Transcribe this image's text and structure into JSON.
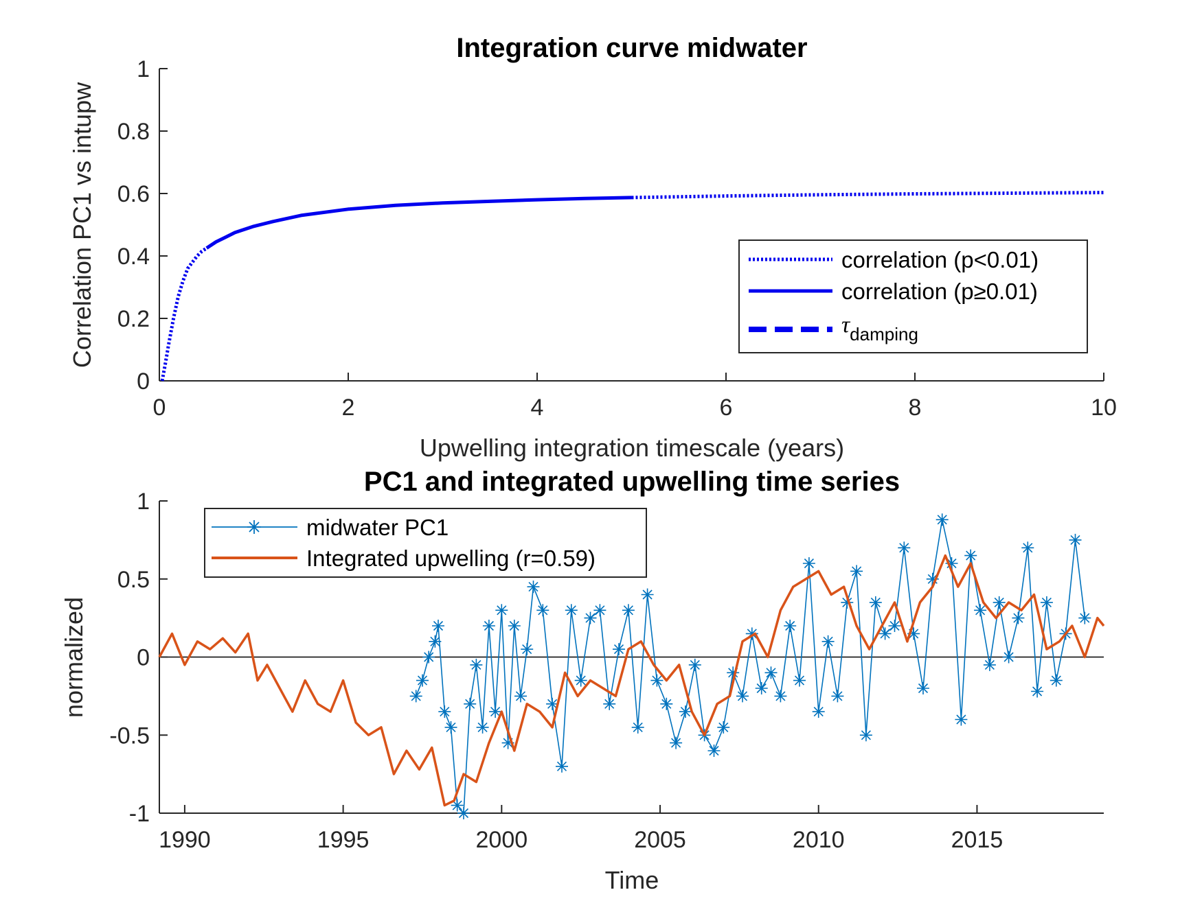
{
  "colors": {
    "top_series": "#0000ee",
    "pc1": "#0072bd",
    "upwelling": "#d95319",
    "axis": "#262626"
  },
  "chart_data": [
    {
      "type": "line",
      "title": "Integration curve midwater",
      "xlabel": "Upwelling integration timescale (years)",
      "ylabel": "Correlation PC1 vs intupw",
      "xlim": [
        0,
        10
      ],
      "ylim": [
        0,
        1
      ],
      "xticks": [
        0,
        2,
        4,
        6,
        8,
        10
      ],
      "xtick_labels": [
        "0",
        "2",
        "4",
        "6",
        "8",
        "10"
      ],
      "yticks": [
        0,
        0.2,
        0.4,
        0.6,
        0.8,
        1
      ],
      "ytick_labels": [
        "0",
        "0.2",
        "0.4",
        "0.6",
        "0.8",
        "1"
      ],
      "grid": false,
      "legend_position": "lower-right",
      "legend": [
        {
          "label": "correlation (p<0.01)",
          "style": "dotted"
        },
        {
          "label": "correlation (p≥0.01)",
          "style": "solid"
        },
        {
          "label_main": "τ",
          "label_sub": "damping",
          "style": "dashed"
        }
      ],
      "series": [
        {
          "style": "dotted",
          "x": [
            0.03,
            0.06,
            0.1,
            0.15,
            0.2,
            0.25,
            0.3,
            0.35,
            0.4,
            0.45,
            0.5
          ],
          "y": [
            0.0,
            0.05,
            0.12,
            0.2,
            0.27,
            0.32,
            0.36,
            0.38,
            0.4,
            0.415,
            0.425
          ]
        },
        {
          "style": "solid",
          "x": [
            0.5,
            0.6,
            0.7,
            0.8,
            1.0,
            1.2,
            1.5,
            2.0,
            2.5,
            3.0,
            3.5,
            4.0,
            4.5,
            5.0
          ],
          "y": [
            0.425,
            0.445,
            0.46,
            0.475,
            0.495,
            0.51,
            0.53,
            0.55,
            0.562,
            0.57,
            0.575,
            0.58,
            0.584,
            0.587
          ]
        },
        {
          "style": "dotted",
          "x": [
            5.0,
            6.0,
            7.0,
            8.0,
            9.0,
            10.0
          ],
          "y": [
            0.587,
            0.592,
            0.596,
            0.599,
            0.601,
            0.603
          ]
        }
      ]
    },
    {
      "type": "line",
      "title": "PC1 and integrated upwelling time series",
      "xlabel": "Time",
      "ylabel": "normalized",
      "xlim": [
        1989.2,
        2019
      ],
      "ylim": [
        -1,
        1
      ],
      "xticks": [
        1990,
        1995,
        2000,
        2005,
        2010,
        2015
      ],
      "xtick_labels": [
        "1990",
        "1995",
        "2000",
        "2005",
        "2010",
        "2015"
      ],
      "yticks": [
        -1,
        -0.5,
        0,
        0.5,
        1
      ],
      "ytick_labels": [
        "-1",
        "-0.5",
        "0",
        "0.5",
        "1"
      ],
      "grid": false,
      "zero_line": true,
      "legend_position": "top-left",
      "series": [
        {
          "name": "midwater PC1",
          "marker": "asterisk",
          "x": [
            1997.3,
            1997.5,
            1997.7,
            1997.9,
            1998.0,
            1998.2,
            1998.4,
            1998.6,
            1998.8,
            1999.0,
            1999.2,
            1999.4,
            1999.6,
            1999.8,
            2000.0,
            2000.2,
            2000.4,
            2000.6,
            2000.8,
            2001.0,
            2001.3,
            2001.6,
            2001.9,
            2002.2,
            2002.5,
            2002.8,
            2003.1,
            2003.4,
            2003.7,
            2004.0,
            2004.3,
            2004.6,
            2004.9,
            2005.2,
            2005.5,
            2005.8,
            2006.1,
            2006.4,
            2006.7,
            2007.0,
            2007.3,
            2007.6,
            2007.9,
            2008.2,
            2008.5,
            2008.8,
            2009.1,
            2009.4,
            2009.7,
            2010.0,
            2010.3,
            2010.6,
            2010.9,
            2011.2,
            2011.5,
            2011.8,
            2012.1,
            2012.4,
            2012.7,
            2013.0,
            2013.3,
            2013.6,
            2013.9,
            2014.2,
            2014.5,
            2014.8,
            2015.1,
            2015.4,
            2015.7,
            2016.0,
            2016.3,
            2016.6,
            2016.9,
            2017.2,
            2017.5,
            2017.8,
            2018.1,
            2018.4
          ],
          "y": [
            -0.25,
            -0.15,
            0.0,
            0.1,
            0.2,
            -0.35,
            -0.45,
            -0.95,
            -1.0,
            -0.3,
            -0.05,
            -0.45,
            0.2,
            -0.35,
            0.3,
            -0.55,
            0.2,
            -0.25,
            0.05,
            0.45,
            0.3,
            -0.3,
            -0.7,
            0.3,
            -0.15,
            0.25,
            0.3,
            -0.3,
            0.05,
            0.3,
            -0.45,
            0.4,
            -0.15,
            -0.3,
            -0.55,
            -0.35,
            -0.05,
            -0.5,
            -0.6,
            -0.45,
            -0.1,
            -0.25,
            0.15,
            -0.2,
            -0.1,
            -0.25,
            0.2,
            -0.15,
            0.6,
            -0.35,
            0.1,
            -0.25,
            0.35,
            0.55,
            -0.5,
            0.35,
            0.15,
            0.2,
            0.7,
            0.15,
            -0.2,
            0.5,
            0.88,
            0.6,
            -0.4,
            0.65,
            0.3,
            -0.05,
            0.35,
            0.0,
            0.25,
            0.7,
            -0.22,
            0.35,
            -0.15,
            0.15,
            0.75,
            0.25
          ]
        },
        {
          "name": "Integrated upwelling (r=0.59)",
          "marker": "none",
          "x": [
            1989.2,
            1989.6,
            1990.0,
            1990.4,
            1990.8,
            1991.2,
            1991.6,
            1992.0,
            1992.3,
            1992.6,
            1993.0,
            1993.4,
            1993.8,
            1994.2,
            1994.6,
            1995.0,
            1995.4,
            1995.8,
            1996.2,
            1996.6,
            1997.0,
            1997.4,
            1997.8,
            1998.2,
            1998.5,
            1998.8,
            1999.2,
            1999.6,
            2000.0,
            2000.4,
            2000.8,
            2001.2,
            2001.6,
            2002.0,
            2002.4,
            2002.8,
            2003.2,
            2003.6,
            2004.0,
            2004.4,
            2004.8,
            2005.2,
            2005.6,
            2006.0,
            2006.4,
            2006.8,
            2007.2,
            2007.6,
            2008.0,
            2008.4,
            2008.8,
            2009.2,
            2009.6,
            2010.0,
            2010.4,
            2010.8,
            2011.2,
            2011.6,
            2012.0,
            2012.4,
            2012.8,
            2013.2,
            2013.6,
            2014.0,
            2014.4,
            2014.8,
            2015.2,
            2015.6,
            2016.0,
            2016.4,
            2016.8,
            2017.2,
            2017.6,
            2018.0,
            2018.4,
            2018.8,
            2019.0
          ],
          "y": [
            0.0,
            0.15,
            -0.05,
            0.1,
            0.05,
            0.12,
            0.03,
            0.15,
            -0.15,
            -0.05,
            -0.2,
            -0.35,
            -0.15,
            -0.3,
            -0.35,
            -0.15,
            -0.42,
            -0.5,
            -0.45,
            -0.75,
            -0.6,
            -0.72,
            -0.58,
            -0.95,
            -0.92,
            -0.75,
            -0.8,
            -0.55,
            -0.35,
            -0.6,
            -0.3,
            -0.35,
            -0.45,
            -0.1,
            -0.25,
            -0.15,
            -0.2,
            -0.25,
            0.05,
            0.1,
            -0.05,
            -0.15,
            -0.05,
            -0.35,
            -0.5,
            -0.3,
            -0.25,
            0.1,
            0.15,
            0.0,
            0.3,
            0.45,
            0.5,
            0.55,
            0.4,
            0.45,
            0.2,
            0.05,
            0.2,
            0.35,
            0.1,
            0.35,
            0.45,
            0.65,
            0.45,
            0.6,
            0.35,
            0.25,
            0.35,
            0.3,
            0.4,
            0.05,
            0.1,
            0.2,
            0.0,
            0.25,
            0.2
          ]
        }
      ]
    }
  ]
}
